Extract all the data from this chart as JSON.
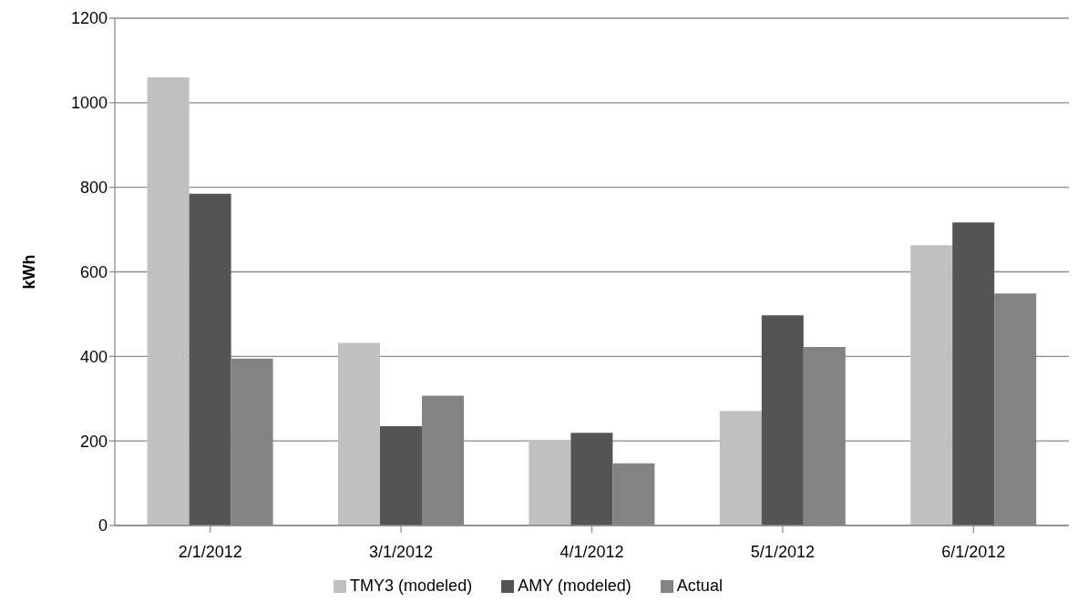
{
  "chart_data": {
    "type": "bar",
    "ylabel": "kWh",
    "categories": [
      "2/1/2012",
      "3/1/2012",
      "4/1/2012",
      "5/1/2012",
      "6/1/2012"
    ],
    "series": [
      {
        "name": "TMY3 (modeled)",
        "color": "#c0c0c0",
        "values": [
          1060,
          432,
          200,
          271,
          663
        ]
      },
      {
        "name": "AMY (modeled)",
        "color": "#545454",
        "values": [
          785,
          235,
          219,
          497,
          717
        ]
      },
      {
        "name": "Actual",
        "color": "#838383",
        "values": [
          395,
          307,
          147,
          422,
          549
        ]
      }
    ],
    "ylim": [
      0,
      1200
    ],
    "yticks": [
      0,
      200,
      400,
      600,
      800,
      1000,
      1200
    ],
    "grid": "y",
    "legend": "bottom"
  }
}
